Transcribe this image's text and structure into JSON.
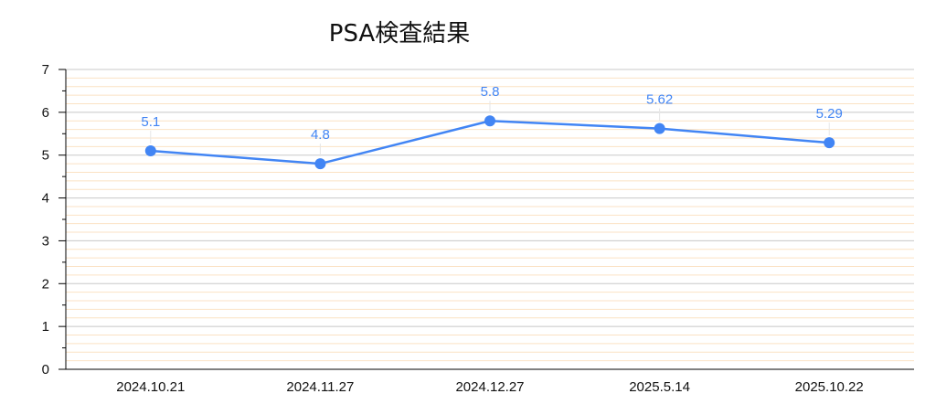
{
  "chart_data": {
    "type": "line",
    "title": "PSA検査結果",
    "xlabel": "",
    "ylabel": "",
    "categories": [
      "2024.10.21",
      "2024.11.27",
      "2024.12.27",
      "2025.5.14",
      "2025.10.22"
    ],
    "series": [
      {
        "values": [
          5.1,
          4.8,
          5.8,
          5.62,
          5.29
        ],
        "data_labels": [
          "5.1",
          "4.8",
          "5.8",
          "5.62",
          "5.29"
        ]
      }
    ],
    "ylim": [
      0,
      7
    ],
    "yticks": [
      "0",
      "1",
      "2",
      "3",
      "4",
      "5",
      "6",
      "7"
    ],
    "grid": true,
    "legend": "none",
    "colors": {
      "line": "#4285f4",
      "label": "#4285f4",
      "major_grid": "#c8c8c8",
      "minor_grid": "#fbe2c4",
      "axis": "#000000"
    }
  }
}
